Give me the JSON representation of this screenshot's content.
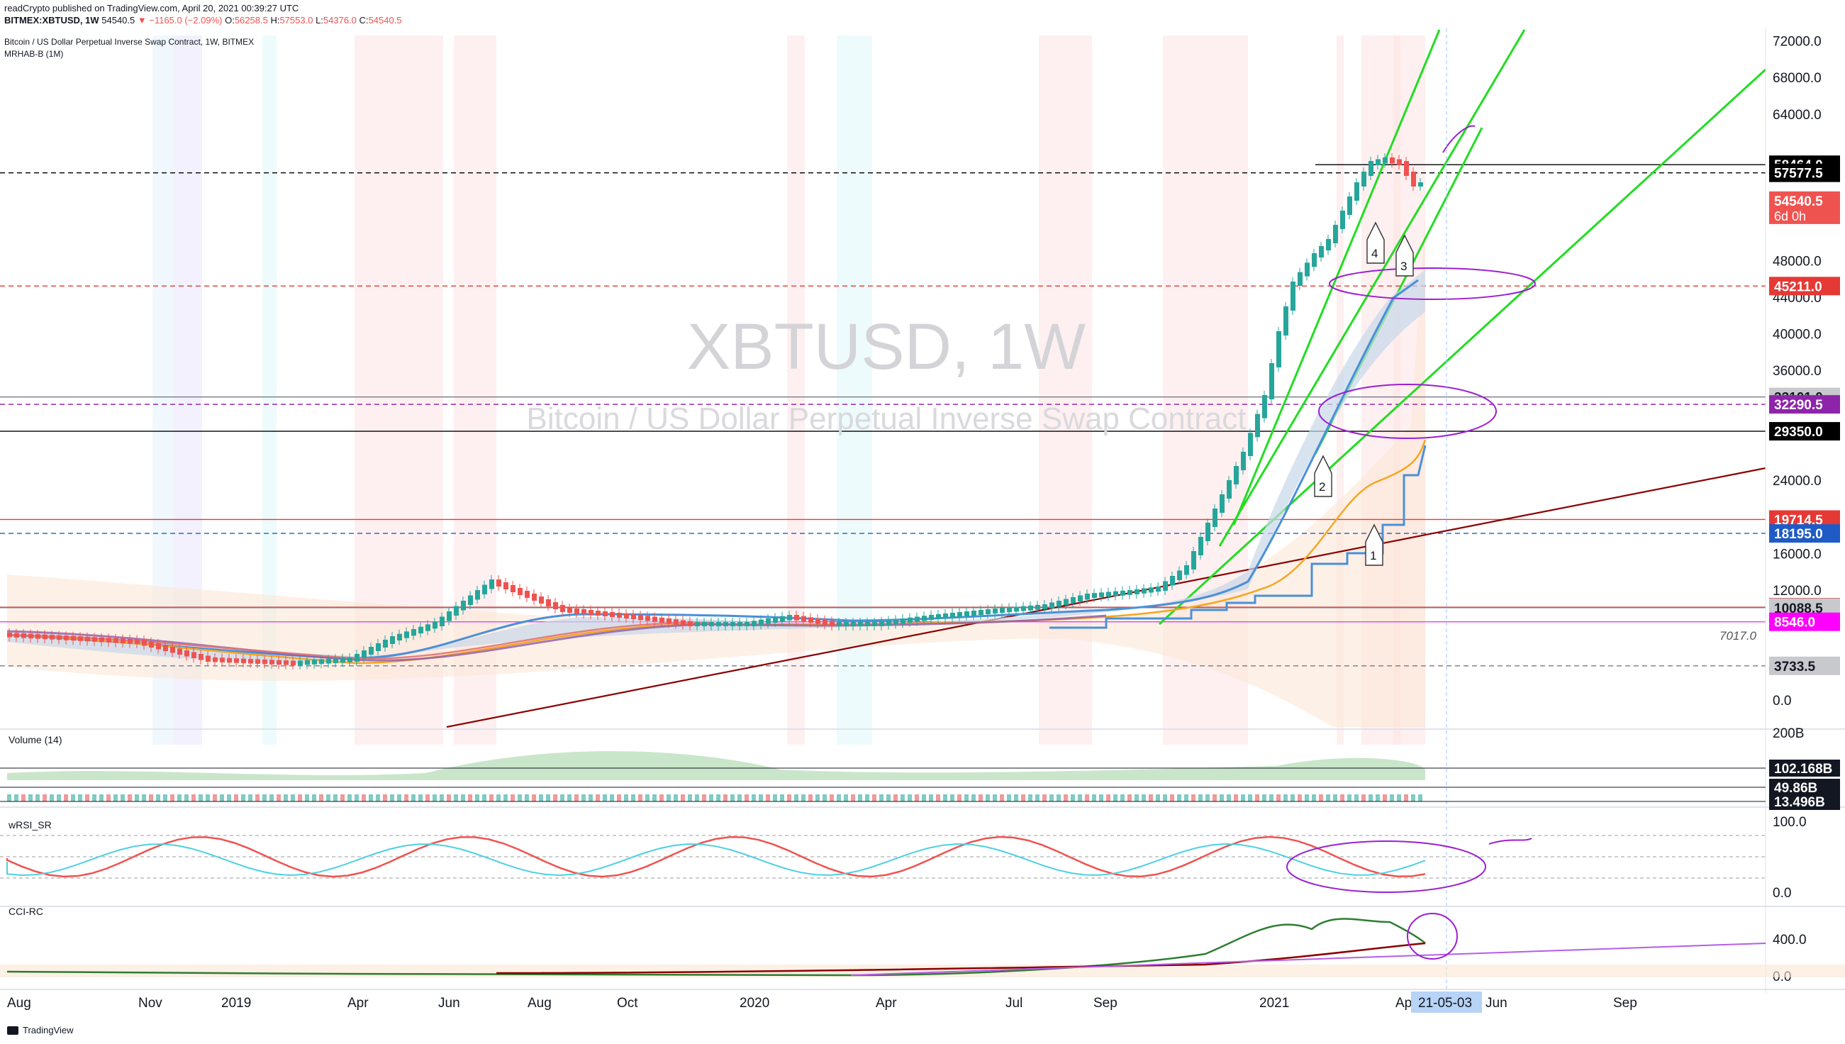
{
  "header": {
    "publish_line": "readCrypto published on TradingView.com, April 20, 2021 00:39:27 UTC",
    "symbol": "BITMEX:XBTUSD, 1W",
    "last": "54540.5",
    "change": "▼ −1165.0 (−2.09%)",
    "ohlc": [
      {
        "k": "O:",
        "v": "56258.5"
      },
      {
        "k": "H:",
        "v": "57553.0"
      },
      {
        "k": "L:",
        "v": "54376.0"
      },
      {
        "k": "C:",
        "v": "54540.5"
      }
    ]
  },
  "legend": {
    "title": "Bitcoin / US Dollar Perpetual Inverse Swap Contract, 1W, BITMEX",
    "indicator": "MRHAB-B (1M)"
  },
  "watermark": {
    "symbol": "XBTUSD, 1W",
    "desc": "Bitcoin / US Dollar Perpetual Inverse Swap Contract"
  },
  "footer": {
    "brand": "TradingView"
  },
  "colors": {
    "up": "#26a69a",
    "down": "#ef5350",
    "trend_green": "#22dd22",
    "trend_dark": "#8b0000",
    "blue": "#4a90d9",
    "orange": "#f5a623",
    "purple_mark": "#9b1fd1",
    "axis_text": "#131722"
  },
  "chart_data": [
    {
      "type": "candlestick",
      "name": "price",
      "interval": "1W",
      "y_axis_ticks": [
        "72000.0",
        "68000.0",
        "64000.0",
        "60000.0",
        "56000.0",
        "52000.0",
        "48000.0",
        "44000.0",
        "40000.0",
        "36000.0",
        "32000.0",
        "28000.0",
        "24000.0",
        "20000.0",
        "16000.0",
        "12000.0",
        "8000.0",
        "4000.0",
        "0.0"
      ],
      "y_axis_labels": [
        "72000.0",
        "68000.0",
        "64000.0",
        "48000.0",
        "44000.0",
        "40000.0",
        "36000.0",
        "24000.0",
        "16000.0",
        "12000.0",
        "0.0"
      ],
      "x_axis_labels": [
        "Aug",
        "Nov",
        "2019",
        "Apr",
        "Jun",
        "Aug",
        "Oct",
        "2020",
        "Apr",
        "Jul",
        "Sep",
        "2021",
        "Apr",
        "Jun",
        "Sep"
      ],
      "cursor_date": "21-05-03",
      "price_levels": [
        {
          "label": "58464.0",
          "value": 58464.0,
          "style": "solid",
          "color": "#000000"
        },
        {
          "label": "57577.5",
          "value": 57577.5,
          "style": "dashed",
          "color": "#000000"
        },
        {
          "label": "54540.5",
          "sublabel": "6d 0h",
          "value": 54540.5,
          "style": "none",
          "color": "#ef5350"
        },
        {
          "label": "45211.0",
          "value": 45211.0,
          "style": "dashed",
          "color": "#e53935"
        },
        {
          "label": "33101.0",
          "value": 33101.0,
          "style": "solid",
          "color": "#787b86"
        },
        {
          "label": "32290.5",
          "value": 32290.5,
          "style": "dashed",
          "color": "#9c27b0"
        },
        {
          "label": "29350.0",
          "value": 29350.0,
          "style": "solid",
          "color": "#000000"
        },
        {
          "label": "19714.5",
          "value": 19714.5,
          "style": "solid",
          "color": "#e53935"
        },
        {
          "label": "18195.0",
          "value": 18195.0,
          "style": "dashed",
          "color": "#1e5bc6"
        },
        {
          "label": "10132.0",
          "value": 10132.0,
          "style": "solid",
          "color": "#c62828"
        },
        {
          "label": "10088.5",
          "value": 10088.5,
          "style": "solid",
          "color": "#787b86"
        },
        {
          "label": "8546.0",
          "value": 8546.0,
          "style": "solid",
          "color": "#e040fb"
        },
        {
          "label": "3733.5",
          "value": 3733.5,
          "style": "dashed",
          "color": "#787b86"
        }
      ],
      "annotation_text": "7017.0",
      "callouts": [
        "1",
        "2",
        "3",
        "4"
      ]
    },
    {
      "type": "bar",
      "name": "Volume (14)",
      "y_axis_labels": [
        "200B"
      ],
      "levels": [
        {
          "label": "102.168B"
        },
        {
          "label": "49.86B"
        },
        {
          "label": "13.496B"
        }
      ]
    },
    {
      "type": "line",
      "name": "wRSI_SR",
      "y_axis_labels": [
        "100.0",
        "0.0"
      ]
    },
    {
      "type": "line",
      "name": "CCI-RC",
      "y_axis_labels": [
        "400.0",
        "0.0"
      ]
    }
  ]
}
